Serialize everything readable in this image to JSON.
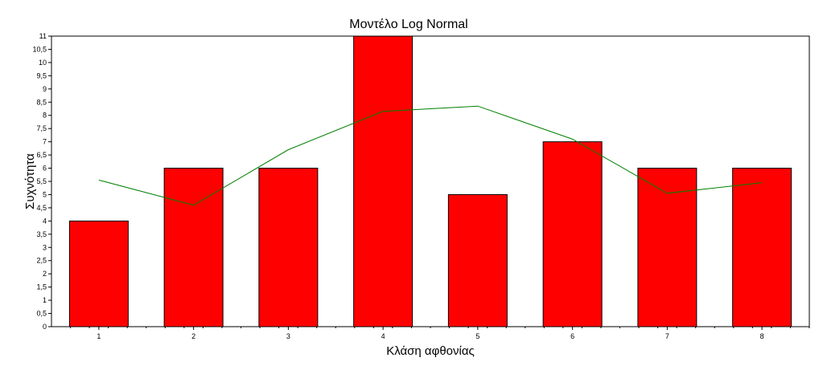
{
  "chart_data": {
    "type": "bar",
    "title": "Μοντέλο Log Normal",
    "xlabel": "Κλάση αφθονίας",
    "ylabel": "Συχνότητα",
    "categories": [
      "1",
      "2",
      "3",
      "4",
      "5",
      "6",
      "7",
      "8"
    ],
    "series": [
      {
        "type": "bar",
        "values": [
          4,
          6,
          6,
          11,
          5,
          7,
          6,
          6
        ],
        "color": "#ff0000"
      },
      {
        "type": "line",
        "values": [
          5.55,
          4.6,
          6.7,
          8.15,
          8.35,
          7.1,
          5.05,
          5.45
        ],
        "color": "#008000"
      }
    ],
    "ylim": [
      0,
      11
    ],
    "yticks": [
      "0",
      "0,5",
      "1",
      "1,5",
      "2",
      "2,5",
      "3",
      "3,5",
      "4",
      "4,5",
      "5",
      "5,5",
      "6",
      "6,5",
      "7",
      "7,5",
      "8",
      "8,5",
      "9",
      "9,5",
      "10",
      "10,5",
      "11"
    ],
    "grid": false,
    "legend": "none"
  }
}
